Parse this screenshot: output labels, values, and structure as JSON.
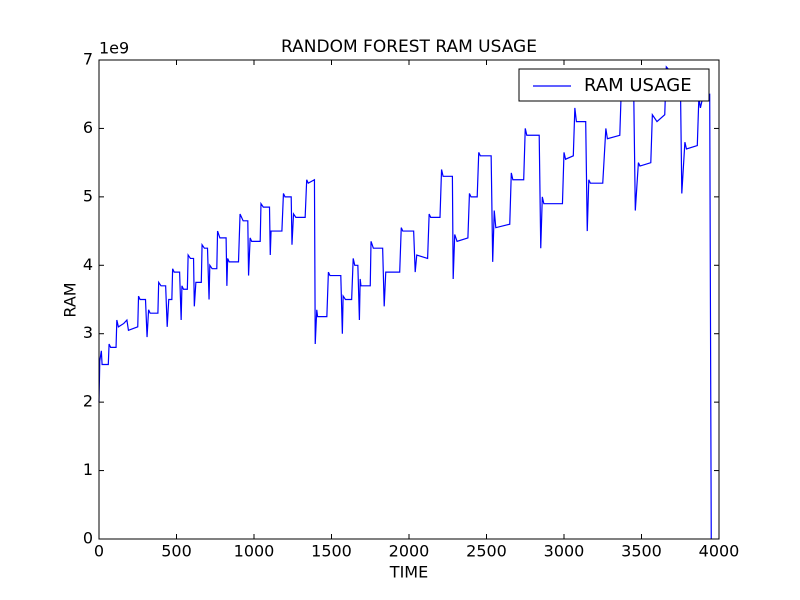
{
  "chart_data": {
    "type": "line",
    "title": "RANDOM FOREST RAM USAGE",
    "x_label": "TIME",
    "y_label": "RAM",
    "y_offset_label": "1e9",
    "xlim": [
      0,
      4000
    ],
    "ylim": [
      0,
      7
    ],
    "xticks": [
      0,
      500,
      1000,
      1500,
      2000,
      2500,
      3000,
      3500,
      4000
    ],
    "yticks": [
      0,
      1,
      2,
      3,
      4,
      5,
      6,
      7
    ],
    "legend": "upper right",
    "grid": false,
    "x": [
      0,
      5,
      15,
      20,
      60,
      65,
      75,
      110,
      115,
      125,
      160,
      180,
      190,
      250,
      255,
      265,
      300,
      310,
      320,
      330,
      380,
      385,
      400,
      430,
      440,
      450,
      470,
      475,
      485,
      520,
      530,
      535,
      545,
      570,
      575,
      590,
      610,
      615,
      625,
      660,
      665,
      680,
      700,
      710,
      715,
      730,
      760,
      765,
      780,
      820,
      825,
      830,
      840,
      900,
      910,
      930,
      960,
      965,
      975,
      985,
      1040,
      1045,
      1060,
      1100,
      1105,
      1110,
      1180,
      1190,
      1200,
      1240,
      1245,
      1255,
      1270,
      1330,
      1340,
      1350,
      1390,
      1395,
      1405,
      1410,
      1470,
      1480,
      1490,
      1560,
      1570,
      1575,
      1590,
      1630,
      1640,
      1650,
      1670,
      1680,
      1685,
      1690,
      1750,
      1755,
      1770,
      1830,
      1840,
      1850,
      1940,
      1950,
      1960,
      2030,
      2040,
      2050,
      2120,
      2130,
      2140,
      2200,
      2210,
      2220,
      2280,
      2285,
      2295,
      2310,
      2380,
      2390,
      2400,
      2440,
      2450,
      2460,
      2530,
      2540,
      2550,
      2560,
      2650,
      2660,
      2670,
      2740,
      2750,
      2760,
      2840,
      2850,
      2860,
      2870,
      2990,
      3000,
      3010,
      3060,
      3070,
      3080,
      3140,
      3150,
      3160,
      3170,
      3250,
      3270,
      3280,
      3360,
      3370,
      3380,
      3450,
      3460,
      3480,
      3490,
      3560,
      3570,
      3600,
      3650,
      3660,
      3680,
      3750,
      3760,
      3780,
      3790,
      3860,
      3870,
      3880,
      3900,
      3940,
      3950
    ],
    "series": [
      {
        "name": "RAM USAGE",
        "color": "#0000ff",
        "values": [
          2.0,
          2.6,
          2.75,
          2.55,
          2.55,
          2.85,
          2.8,
          2.8,
          3.2,
          3.1,
          3.15,
          3.2,
          3.05,
          3.1,
          3.55,
          3.5,
          3.5,
          2.95,
          3.35,
          3.3,
          3.3,
          3.75,
          3.7,
          3.7,
          3.1,
          3.5,
          3.5,
          3.95,
          3.9,
          3.9,
          3.2,
          3.7,
          3.65,
          3.65,
          4.15,
          4.1,
          4.1,
          3.4,
          3.75,
          3.75,
          4.3,
          4.25,
          4.25,
          3.5,
          4.0,
          3.95,
          3.95,
          4.5,
          4.4,
          4.4,
          3.7,
          4.1,
          4.05,
          4.05,
          4.75,
          4.65,
          4.65,
          3.85,
          4.4,
          4.35,
          4.35,
          4.9,
          4.85,
          4.85,
          4.15,
          4.5,
          4.5,
          5.05,
          5.0,
          5.0,
          4.3,
          4.75,
          4.7,
          4.7,
          5.25,
          5.2,
          5.25,
          2.85,
          3.35,
          3.25,
          3.25,
          3.9,
          3.85,
          3.85,
          3.0,
          3.55,
          3.5,
          3.5,
          4.1,
          4.0,
          4.0,
          3.2,
          3.8,
          3.7,
          3.7,
          4.35,
          4.25,
          4.25,
          3.4,
          3.9,
          3.9,
          4.55,
          4.5,
          4.5,
          3.9,
          4.15,
          4.1,
          4.75,
          4.7,
          4.7,
          5.4,
          5.3,
          5.3,
          3.8,
          4.45,
          4.35,
          4.4,
          5.05,
          5.0,
          5.0,
          5.65,
          5.6,
          5.6,
          4.05,
          4.8,
          4.55,
          4.6,
          5.35,
          5.25,
          5.25,
          6.0,
          5.9,
          5.9,
          4.25,
          5.0,
          4.9,
          4.9,
          5.65,
          5.55,
          5.6,
          6.3,
          6.1,
          6.1,
          4.5,
          5.25,
          5.2,
          5.2,
          6.0,
          5.85,
          5.9,
          6.6,
          6.5,
          6.5,
          4.8,
          5.5,
          5.45,
          5.5,
          6.2,
          6.1,
          6.2,
          6.9,
          6.85,
          6.85,
          5.05,
          5.8,
          5.7,
          5.75,
          6.45,
          6.3,
          6.5,
          6.5,
          0
        ]
      }
    ]
  }
}
